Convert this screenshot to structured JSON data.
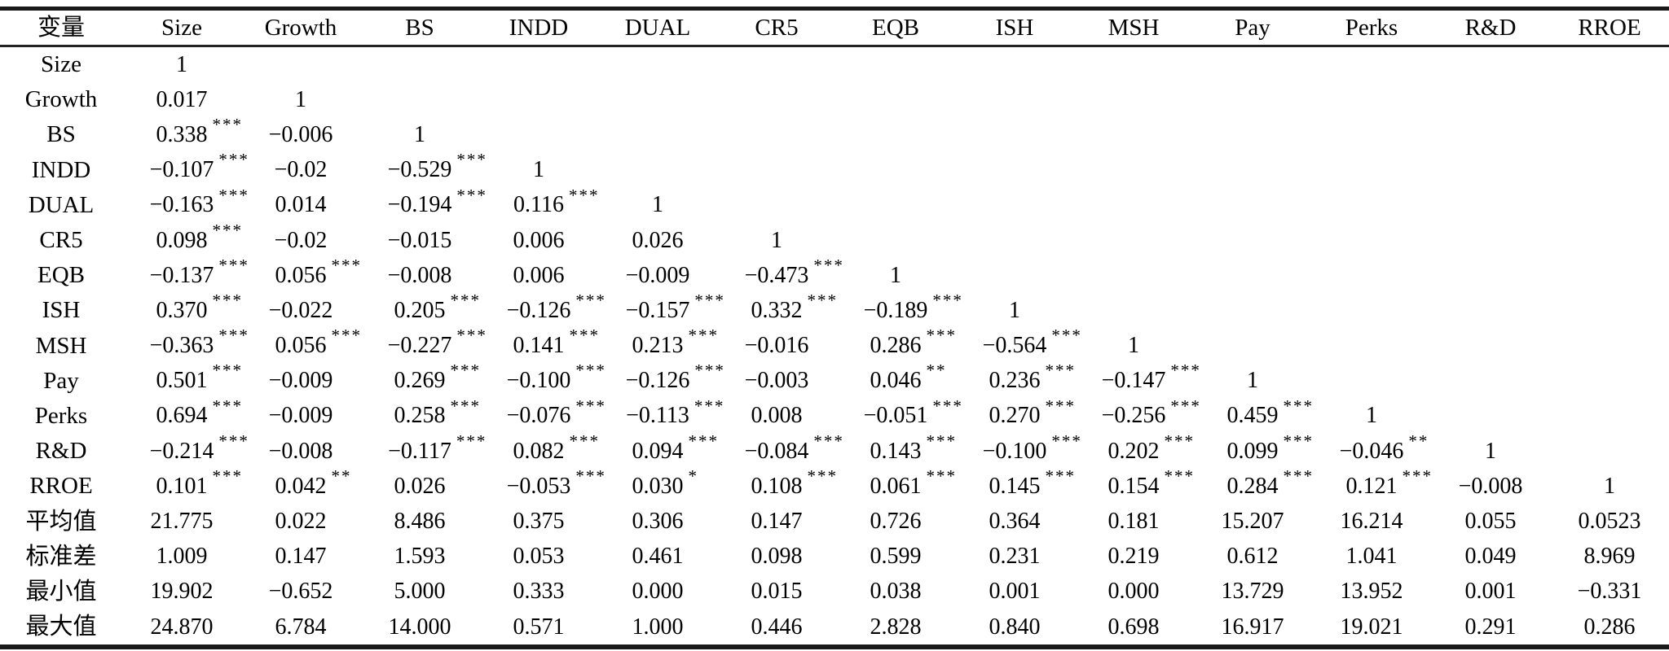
{
  "table": {
    "title_column": "变量",
    "columns": [
      "变量",
      "Size",
      "Growth",
      "BS",
      "INDD",
      "DUAL",
      "CR5",
      "EQB",
      "ISH",
      "MSH",
      "Pay",
      "Perks",
      "R&D",
      "RROE"
    ],
    "significance_marks": {
      "one_star": "*",
      "two_stars": "**",
      "three_stars": "***"
    },
    "rows": [
      {
        "label": "Size",
        "cells": [
          {
            "v": "1"
          },
          null,
          null,
          null,
          null,
          null,
          null,
          null,
          null,
          null,
          null,
          null,
          null
        ]
      },
      {
        "label": "Growth",
        "cells": [
          {
            "v": "0.017"
          },
          {
            "v": "1"
          },
          null,
          null,
          null,
          null,
          null,
          null,
          null,
          null,
          null,
          null,
          null
        ]
      },
      {
        "label": "BS",
        "cells": [
          {
            "v": "0.338",
            "s": "***"
          },
          {
            "v": "−0.006"
          },
          {
            "v": "1"
          },
          null,
          null,
          null,
          null,
          null,
          null,
          null,
          null,
          null,
          null
        ]
      },
      {
        "label": "INDD",
        "cells": [
          {
            "v": "−0.107",
            "s": "***"
          },
          {
            "v": "−0.02"
          },
          {
            "v": "−0.529",
            "s": "***"
          },
          {
            "v": "1"
          },
          null,
          null,
          null,
          null,
          null,
          null,
          null,
          null,
          null
        ]
      },
      {
        "label": "DUAL",
        "cells": [
          {
            "v": "−0.163",
            "s": "***"
          },
          {
            "v": "0.014"
          },
          {
            "v": "−0.194",
            "s": "***"
          },
          {
            "v": "0.116",
            "s": "***"
          },
          {
            "v": "1"
          },
          null,
          null,
          null,
          null,
          null,
          null,
          null,
          null
        ]
      },
      {
        "label": "CR5",
        "cells": [
          {
            "v": "0.098",
            "s": "***"
          },
          {
            "v": "−0.02"
          },
          {
            "v": "−0.015"
          },
          {
            "v": "0.006"
          },
          {
            "v": "0.026"
          },
          {
            "v": "1"
          },
          null,
          null,
          null,
          null,
          null,
          null,
          null
        ]
      },
      {
        "label": "EQB",
        "cells": [
          {
            "v": "−0.137",
            "s": "***"
          },
          {
            "v": "0.056",
            "s": "***"
          },
          {
            "v": "−0.008"
          },
          {
            "v": "0.006"
          },
          {
            "v": "−0.009"
          },
          {
            "v": "−0.473",
            "s": "***"
          },
          {
            "v": "1"
          },
          null,
          null,
          null,
          null,
          null,
          null
        ]
      },
      {
        "label": "ISH",
        "cells": [
          {
            "v": "0.370",
            "s": "***"
          },
          {
            "v": "−0.022"
          },
          {
            "v": "0.205",
            "s": "***"
          },
          {
            "v": "−0.126",
            "s": "***"
          },
          {
            "v": "−0.157",
            "s": "***"
          },
          {
            "v": "0.332",
            "s": "***"
          },
          {
            "v": "−0.189",
            "s": "***"
          },
          {
            "v": "1"
          },
          null,
          null,
          null,
          null,
          null
        ]
      },
      {
        "label": "MSH",
        "cells": [
          {
            "v": "−0.363",
            "s": "***"
          },
          {
            "v": "0.056",
            "s": "***"
          },
          {
            "v": "−0.227",
            "s": "***"
          },
          {
            "v": "0.141",
            "s": "***"
          },
          {
            "v": "0.213",
            "s": "***"
          },
          {
            "v": "−0.016"
          },
          {
            "v": "0.286",
            "s": "***"
          },
          {
            "v": "−0.564",
            "s": "***"
          },
          {
            "v": "1"
          },
          null,
          null,
          null,
          null
        ]
      },
      {
        "label": "Pay",
        "cells": [
          {
            "v": "0.501",
            "s": "***"
          },
          {
            "v": "−0.009"
          },
          {
            "v": "0.269",
            "s": "***"
          },
          {
            "v": "−0.100",
            "s": "***"
          },
          {
            "v": "−0.126",
            "s": "***"
          },
          {
            "v": "−0.003"
          },
          {
            "v": "0.046",
            "s": "**"
          },
          {
            "v": "0.236",
            "s": "***"
          },
          {
            "v": "−0.147",
            "s": "***"
          },
          {
            "v": "1"
          },
          null,
          null,
          null
        ]
      },
      {
        "label": "Perks",
        "cells": [
          {
            "v": "0.694",
            "s": "***"
          },
          {
            "v": "−0.009"
          },
          {
            "v": "0.258",
            "s": "***"
          },
          {
            "v": "−0.076",
            "s": "***"
          },
          {
            "v": "−0.113",
            "s": "***"
          },
          {
            "v": "0.008"
          },
          {
            "v": "−0.051",
            "s": "***"
          },
          {
            "v": "0.270",
            "s": "***"
          },
          {
            "v": "−0.256",
            "s": "***"
          },
          {
            "v": "0.459",
            "s": "***"
          },
          {
            "v": "1"
          },
          null,
          null
        ]
      },
      {
        "label": "R&D",
        "cells": [
          {
            "v": "−0.214",
            "s": "***"
          },
          {
            "v": "−0.008"
          },
          {
            "v": "−0.117",
            "s": "***"
          },
          {
            "v": "0.082",
            "s": "***"
          },
          {
            "v": "0.094",
            "s": "***"
          },
          {
            "v": "−0.084",
            "s": "***"
          },
          {
            "v": "0.143",
            "s": "***"
          },
          {
            "v": "−0.100",
            "s": "***"
          },
          {
            "v": "0.202",
            "s": "***"
          },
          {
            "v": "0.099",
            "s": "***"
          },
          {
            "v": "−0.046",
            "s": "**"
          },
          {
            "v": "1"
          },
          null
        ]
      },
      {
        "label": "RROE",
        "cells": [
          {
            "v": "0.101",
            "s": "***"
          },
          {
            "v": "0.042",
            "s": "**"
          },
          {
            "v": "0.026"
          },
          {
            "v": "−0.053",
            "s": "***"
          },
          {
            "v": "0.030",
            "s": "*"
          },
          {
            "v": "0.108",
            "s": "***"
          },
          {
            "v": "0.061",
            "s": "***"
          },
          {
            "v": "0.145",
            "s": "***"
          },
          {
            "v": "0.154",
            "s": "***"
          },
          {
            "v": "0.284",
            "s": "***"
          },
          {
            "v": "0.121",
            "s": "***"
          },
          {
            "v": "−0.008"
          },
          {
            "v": "1"
          }
        ]
      },
      {
        "label": "平均值",
        "cells": [
          {
            "v": "21.775"
          },
          {
            "v": "0.022"
          },
          {
            "v": "8.486"
          },
          {
            "v": "0.375"
          },
          {
            "v": "0.306"
          },
          {
            "v": "0.147"
          },
          {
            "v": "0.726"
          },
          {
            "v": "0.364"
          },
          {
            "v": "0.181"
          },
          {
            "v": "15.207"
          },
          {
            "v": "16.214"
          },
          {
            "v": "0.055"
          },
          {
            "v": "0.0523"
          }
        ]
      },
      {
        "label": "标准差",
        "cells": [
          {
            "v": "1.009"
          },
          {
            "v": "0.147"
          },
          {
            "v": "1.593"
          },
          {
            "v": "0.053"
          },
          {
            "v": "0.461"
          },
          {
            "v": "0.098"
          },
          {
            "v": "0.599"
          },
          {
            "v": "0.231"
          },
          {
            "v": "0.219"
          },
          {
            "v": "0.612"
          },
          {
            "v": "1.041"
          },
          {
            "v": "0.049"
          },
          {
            "v": "8.969"
          }
        ]
      },
      {
        "label": "最小值",
        "cells": [
          {
            "v": "19.902"
          },
          {
            "v": "−0.652"
          },
          {
            "v": "5.000"
          },
          {
            "v": "0.333"
          },
          {
            "v": "0.000"
          },
          {
            "v": "0.015"
          },
          {
            "v": "0.038"
          },
          {
            "v": "0.001"
          },
          {
            "v": "0.000"
          },
          {
            "v": "13.729"
          },
          {
            "v": "13.952"
          },
          {
            "v": "0.001"
          },
          {
            "v": "−0.331"
          }
        ]
      },
      {
        "label": "最大值",
        "cells": [
          {
            "v": "24.870"
          },
          {
            "v": "6.784"
          },
          {
            "v": "14.000"
          },
          {
            "v": "0.571"
          },
          {
            "v": "1.000"
          },
          {
            "v": "0.446"
          },
          {
            "v": "2.828"
          },
          {
            "v": "0.840"
          },
          {
            "v": "0.698"
          },
          {
            "v": "16.917"
          },
          {
            "v": "19.021"
          },
          {
            "v": "0.291"
          },
          {
            "v": "0.286"
          }
        ]
      }
    ]
  }
}
